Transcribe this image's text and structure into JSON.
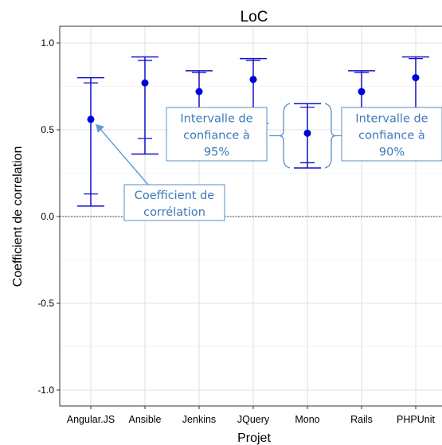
{
  "chart_data": {
    "type": "errorbar",
    "title": "LoC",
    "xlabel": "Projet",
    "ylabel": "Coefficient de correlation",
    "ylim": [
      -1.1,
      1.1
    ],
    "yticks": [
      -1.0,
      -0.5,
      0.0,
      0.5,
      1.0
    ],
    "ytick_labels": [
      "-1.0",
      "-0.5",
      "0.0",
      "0.5",
      "1.0"
    ],
    "grid": true,
    "reference_line": 0.0,
    "categories": [
      "Angular.JS",
      "Ansible",
      "Jenkins",
      "JQuery",
      "Mono",
      "Rails",
      "PHPUnit"
    ],
    "coefficients": [
      0.56,
      0.77,
      0.72,
      0.79,
      0.48,
      0.72,
      0.8
    ],
    "ci95_low": [
      0.06,
      0.36,
      0.36,
      0.36,
      0.28,
      0.36,
      0.36
    ],
    "ci95_high": [
      0.8,
      0.92,
      0.84,
      0.91,
      0.65,
      0.84,
      0.92
    ],
    "ci90_low": [
      0.13,
      0.45,
      0.45,
      0.45,
      0.31,
      0.45,
      0.45
    ],
    "ci90_high": [
      0.77,
      0.9,
      0.83,
      0.9,
      0.63,
      0.83,
      0.91
    ],
    "annotations": [
      {
        "id": "ann-coef",
        "lines": [
          "Coefficient de",
          "corrélation"
        ]
      },
      {
        "id": "ann-95",
        "lines": [
          "Intervalle de",
          "confiance à",
          "95%"
        ]
      },
      {
        "id": "ann-90",
        "lines": [
          "Intervalle de",
          "confiance à",
          "90%"
        ]
      }
    ]
  },
  "colors": {
    "series": "#1010c8",
    "point": "#0000dd",
    "panel_border": "#333333",
    "grid": "#ebebeb",
    "callout_fill": "#ffffff",
    "callout_stroke": "#5b8ec4",
    "callout_text": "#3a78b8",
    "arrow": "#5b9bd5"
  }
}
